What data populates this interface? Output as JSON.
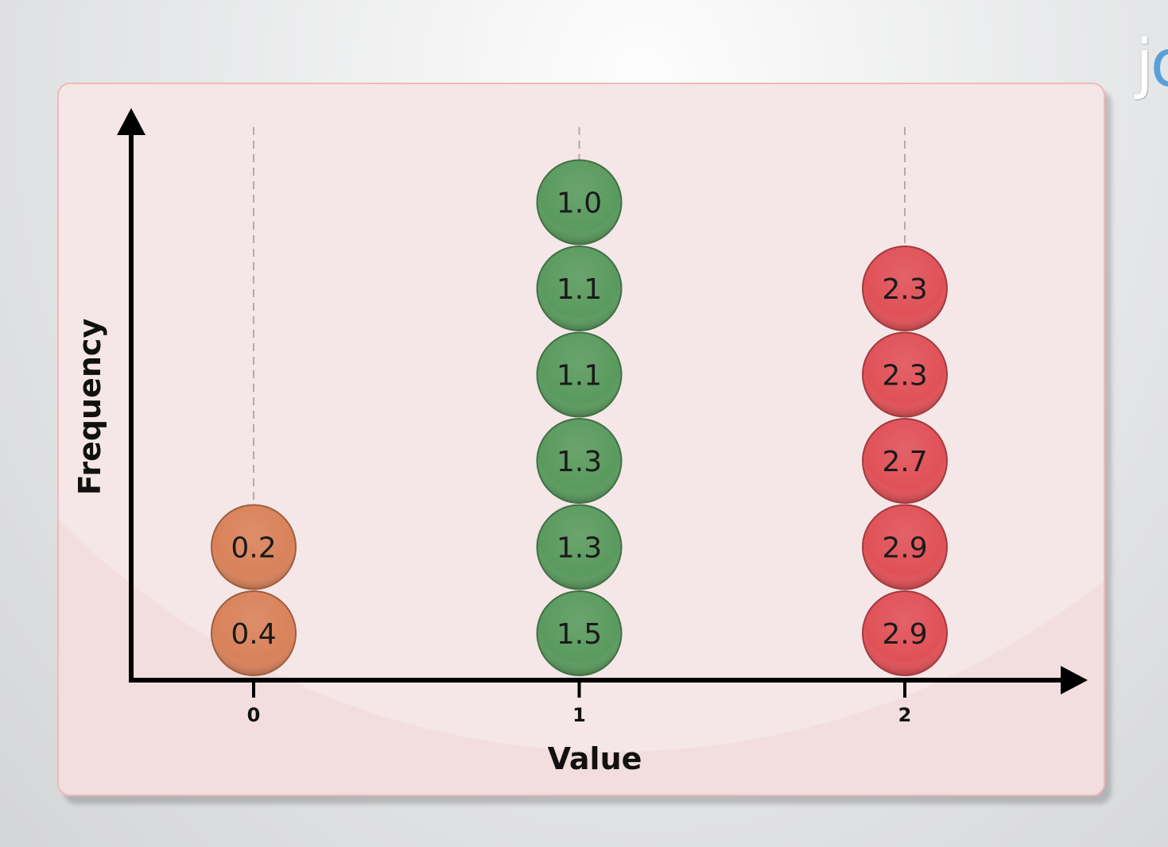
{
  "logo": {
    "text": "jo"
  },
  "colors": {
    "panel_bg": "#f2dede",
    "panel_border": "#efb9b9",
    "axis": "#000000",
    "bin0": "#d9825a",
    "bin1": "#5a9a5e",
    "bin2": "#e05157"
  },
  "chart_data": {
    "type": "scatter",
    "style": "dot-plot histogram",
    "title": "",
    "xlabel": "Value",
    "ylabel": "Frequency",
    "x_ticks": [
      "0",
      "1",
      "2"
    ],
    "grid": false,
    "bins": [
      {
        "x": 0,
        "values": [
          "0.2",
          "0.4"
        ],
        "color": "#d9825a"
      },
      {
        "x": 1,
        "values": [
          "1.0",
          "1.1",
          "1.1",
          "1.3",
          "1.3",
          "1.5"
        ],
        "color": "#5a9a5e"
      },
      {
        "x": 2,
        "values": [
          "2.3",
          "2.3",
          "2.7",
          "2.9",
          "2.9"
        ],
        "color": "#e05157"
      }
    ]
  }
}
